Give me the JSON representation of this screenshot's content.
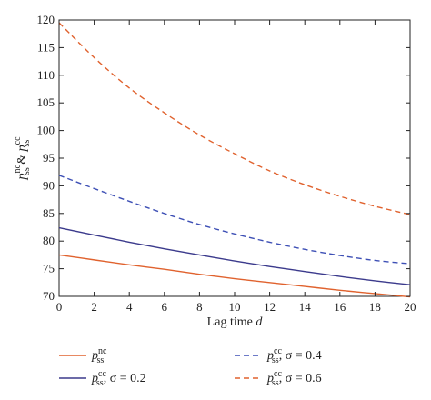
{
  "chart_data": {
    "type": "line",
    "title": "",
    "xlabel": "Lag time",
    "xlabel_var": "d",
    "ylabel": {
      "p1": "p",
      "sup1": "nc",
      "sub1": "ss",
      "amp": " & ",
      "p2": "p",
      "sup2": "cc",
      "sub2": "ss"
    },
    "xlim": [
      0,
      20
    ],
    "ylim": [
      70,
      120
    ],
    "xticks": [
      0,
      2,
      4,
      6,
      8,
      10,
      12,
      14,
      16,
      18,
      20
    ],
    "yticks": [
      70,
      75,
      80,
      85,
      90,
      95,
      100,
      105,
      110,
      115,
      120
    ],
    "grid": false,
    "legend_position": "bottom",
    "x": [
      0,
      2,
      4,
      6,
      8,
      10,
      12,
      14,
      16,
      18,
      20
    ],
    "series": [
      {
        "color": "#e0622e",
        "dash": "solid",
        "legend": {
          "p": "p",
          "sup": "nc",
          "sub": "ss",
          "suffix": ""
        },
        "values": [
          77.5,
          76.6,
          75.7,
          74.9,
          74.0,
          73.2,
          72.5,
          71.8,
          71.1,
          70.5,
          69.9
        ]
      },
      {
        "color": "#3b3a8c",
        "dash": "solid",
        "legend": {
          "p": "p",
          "sup": "cc",
          "sub": "ss",
          "suffix": ", σ = 0.2"
        },
        "values": [
          82.4,
          81.1,
          79.8,
          78.6,
          77.5,
          76.4,
          75.4,
          74.5,
          73.6,
          72.8,
          72.1
        ]
      },
      {
        "color": "#3d4fb5",
        "dash": "dashed",
        "legend": {
          "p": "p",
          "sup": "cc",
          "sub": "ss",
          "suffix": ", σ = 0.4"
        },
        "values": [
          91.9,
          89.5,
          87.2,
          85.0,
          83.0,
          81.3,
          79.8,
          78.5,
          77.4,
          76.5,
          75.9
        ]
      },
      {
        "color": "#e0622e",
        "dash": "dashed",
        "legend": {
          "p": "p",
          "sup": "cc",
          "sub": "ss",
          "suffix": ", σ = 0.6"
        },
        "values": [
          119.5,
          113.2,
          107.7,
          103.2,
          99.2,
          95.8,
          92.7,
          90.2,
          88.1,
          86.3,
          84.8
        ]
      }
    ]
  }
}
